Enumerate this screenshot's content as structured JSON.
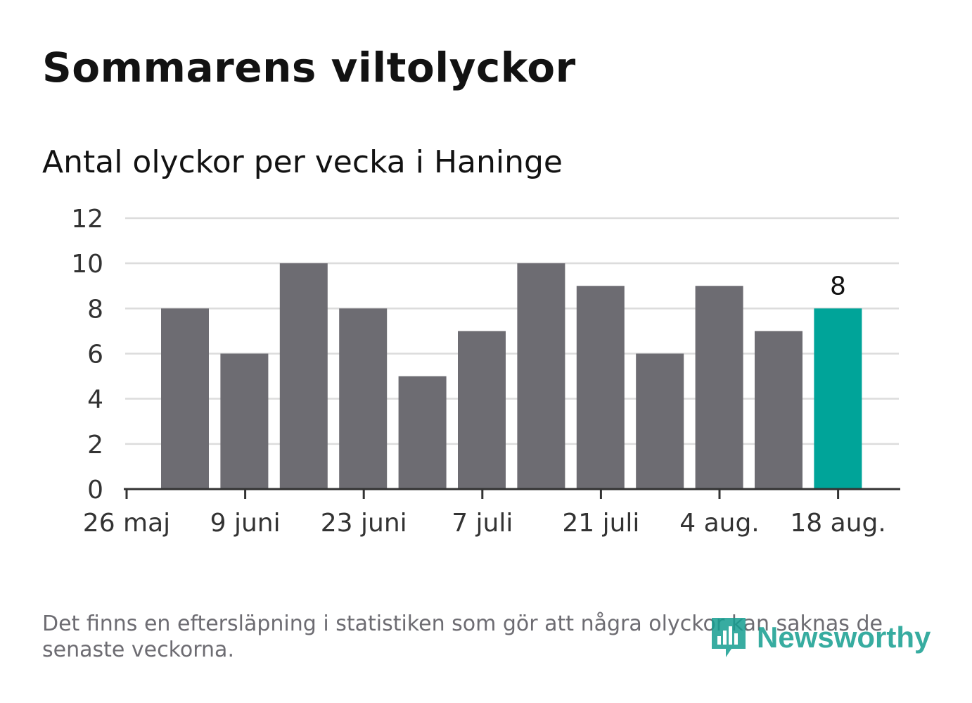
{
  "header": {
    "title": "Sommarens viltolyckor",
    "subtitle": "Antal olyckor per vecka i Haninge"
  },
  "footnote": "Det finns en eftersläpning i statistiken som gör att några olyckor kan saknas de senaste veckorna.",
  "brand": {
    "name": "Newsworthy",
    "icon": "newsworthy-logo-icon",
    "color": "#159e90"
  },
  "colors": {
    "bar": "#6d6c72",
    "highlight": "#00a499",
    "grid": "#dcdcdc",
    "axis": "#333333",
    "text": "#121212",
    "muted": "#6d6c72"
  },
  "chart_data": {
    "type": "bar",
    "title": "Sommarens viltolyckor",
    "subtitle": "Antal olyckor per vecka i Haninge",
    "x_tick_labels": [
      "26 maj",
      "9 juni",
      "23 juni",
      "7 juli",
      "21 juli",
      "4 aug.",
      "18 aug."
    ],
    "y_ticks": [
      0,
      2,
      4,
      6,
      8,
      10,
      12
    ],
    "ylim": [
      0,
      12
    ],
    "values": [
      8,
      6,
      10,
      8,
      5,
      7,
      10,
      9,
      6,
      9,
      7,
      8
    ],
    "highlight_last": true,
    "last_value_label": "8",
    "grid": true,
    "legend": "none"
  }
}
